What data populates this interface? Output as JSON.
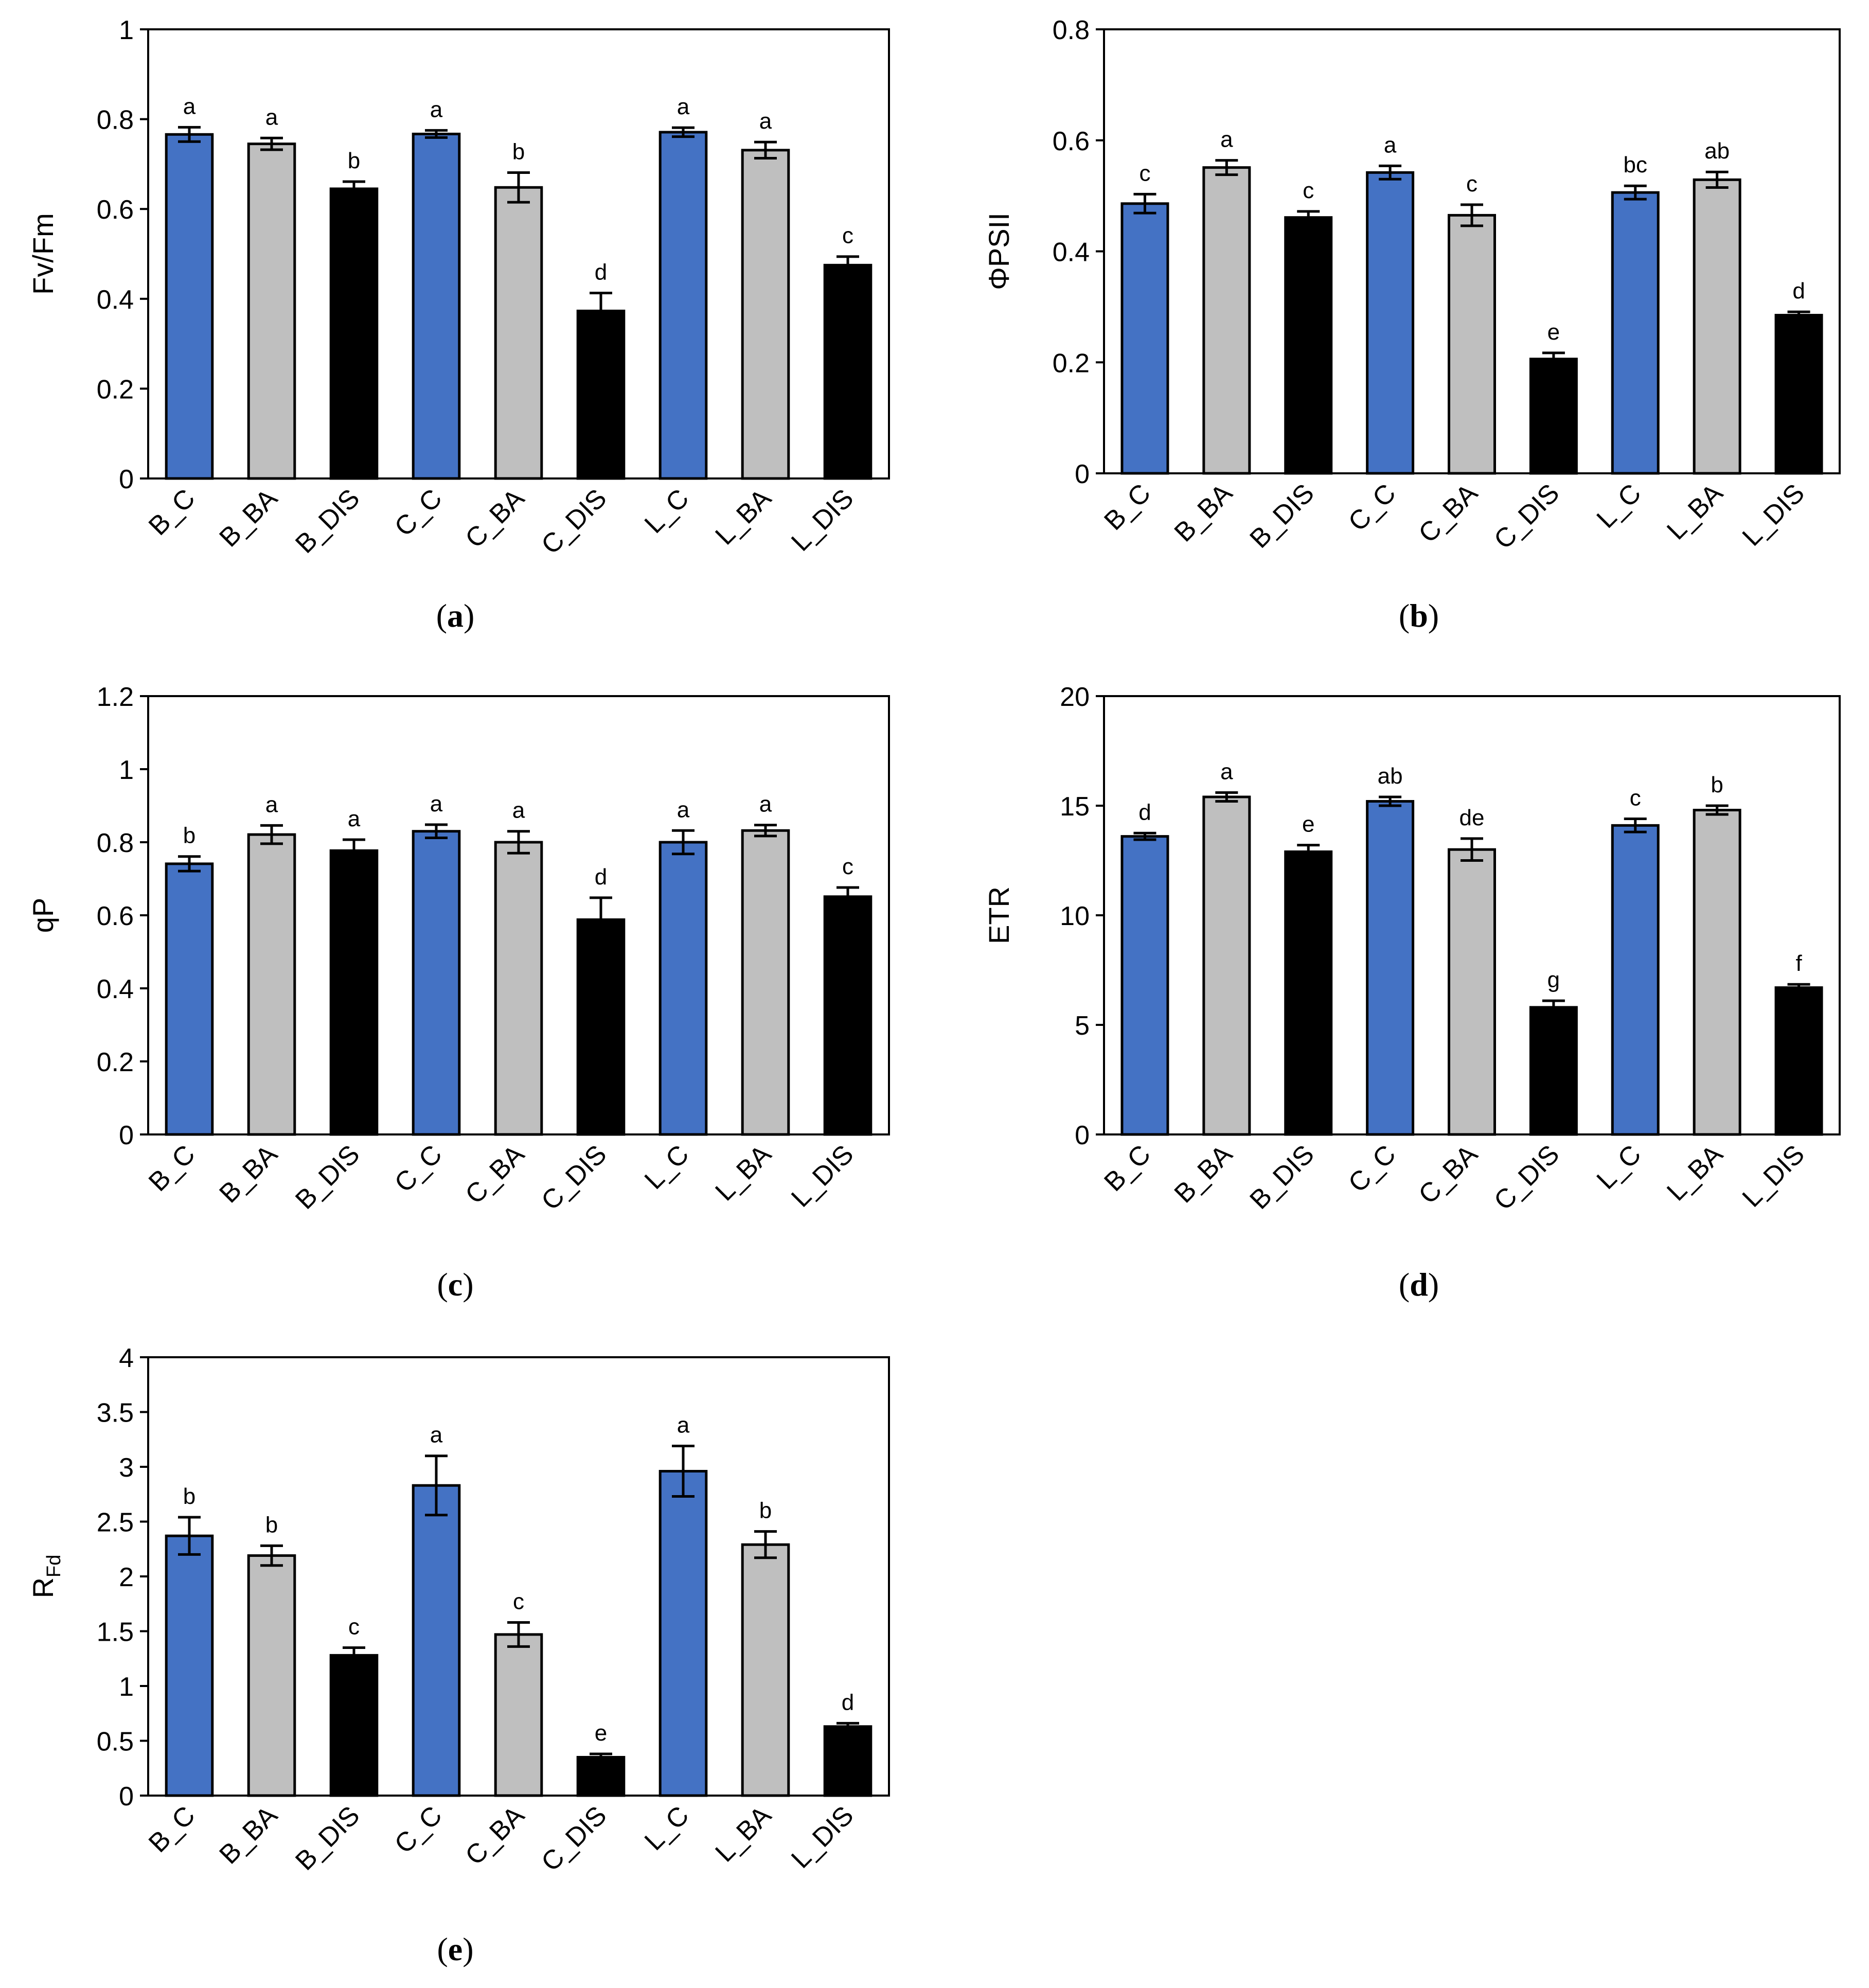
{
  "colors": {
    "blue": "#4472C4",
    "gray": "#BFBFBF",
    "black": "#000000",
    "axis": "#000000"
  },
  "chart_data": [
    {
      "id": "a",
      "type": "bar",
      "panel_label": "a",
      "ylabel": "Fv/Fm",
      "ylim": [
        0,
        1
      ],
      "yticks": [
        "0",
        "0.2",
        "0.4",
        "0.6",
        "0.8",
        "1"
      ],
      "ytick_values": [
        0,
        0.2,
        0.4,
        0.6,
        0.8,
        1
      ],
      "categories": [
        "B_C",
        "B_BA",
        "B_DIS",
        "C_C",
        "C_BA",
        "C_DIS",
        "L_C",
        "L_BA",
        "L_DIS"
      ],
      "fill": [
        "blue",
        "gray",
        "black",
        "blue",
        "gray",
        "black",
        "blue",
        "gray",
        "black"
      ],
      "values": [
        0.766,
        0.745,
        0.645,
        0.767,
        0.648,
        0.373,
        0.771,
        0.731,
        0.475
      ],
      "errors": [
        0.016,
        0.013,
        0.016,
        0.008,
        0.033,
        0.04,
        0.01,
        0.018,
        0.019
      ],
      "letters": [
        "a",
        "a",
        "b",
        "a",
        "b",
        "d",
        "a",
        "a",
        "c"
      ]
    },
    {
      "id": "b",
      "type": "bar",
      "panel_label": "b",
      "ylabel": "ΦPSII",
      "ylim": [
        0,
        0.8
      ],
      "yticks": [
        "0",
        "0.2",
        "0.4",
        "0.6",
        "0.8"
      ],
      "ytick_values": [
        0,
        0.2,
        0.4,
        0.6,
        0.8
      ],
      "categories": [
        "B_C",
        "B_BA",
        "B_DIS",
        "C_C",
        "C_BA",
        "C_DIS",
        "L_C",
        "L_BA",
        "L_DIS"
      ],
      "fill": [
        "blue",
        "gray",
        "black",
        "blue",
        "gray",
        "black",
        "blue",
        "gray",
        "black"
      ],
      "values": [
        0.486,
        0.551,
        0.461,
        0.542,
        0.465,
        0.206,
        0.506,
        0.529,
        0.285
      ],
      "errors": [
        0.017,
        0.013,
        0.011,
        0.012,
        0.019,
        0.011,
        0.012,
        0.014,
        0.006
      ],
      "letters": [
        "c",
        "a",
        "c",
        "a",
        "c",
        "e",
        "bc",
        "ab",
        "d"
      ]
    },
    {
      "id": "c",
      "type": "bar",
      "panel_label": "c",
      "ylabel": "qP",
      "ylim": [
        0,
        1.2
      ],
      "yticks": [
        "0",
        "0.2",
        "0.4",
        "0.6",
        "0.8",
        "1",
        "1.2"
      ],
      "ytick_values": [
        0,
        0.2,
        0.4,
        0.6,
        0.8,
        1,
        1.2
      ],
      "categories": [
        "B_C",
        "B_BA",
        "B_DIS",
        "C_C",
        "C_BA",
        "C_DIS",
        "L_C",
        "L_BA",
        "L_DIS"
      ],
      "fill": [
        "blue",
        "gray",
        "black",
        "blue",
        "gray",
        "black",
        "blue",
        "gray",
        "black"
      ],
      "values": [
        0.741,
        0.821,
        0.777,
        0.83,
        0.8,
        0.588,
        0.8,
        0.832,
        0.651
      ],
      "errors": [
        0.02,
        0.025,
        0.03,
        0.018,
        0.03,
        0.06,
        0.032,
        0.015,
        0.025
      ],
      "letters": [
        "b",
        "a",
        "a",
        "a",
        "a",
        "d",
        "a",
        "a",
        "c"
      ]
    },
    {
      "id": "d",
      "type": "bar",
      "panel_label": "d",
      "ylabel": "ETR",
      "ylim": [
        0,
        20
      ],
      "yticks": [
        "0",
        "5",
        "10",
        "15",
        "20"
      ],
      "ytick_values": [
        0,
        5,
        10,
        15,
        20
      ],
      "categories": [
        "B_C",
        "B_BA",
        "B_DIS",
        "C_C",
        "C_BA",
        "C_DIS",
        "L_C",
        "L_BA",
        "L_DIS"
      ],
      "fill": [
        "blue",
        "gray",
        "black",
        "blue",
        "gray",
        "black",
        "blue",
        "gray",
        "black"
      ],
      "values": [
        13.6,
        15.4,
        12.9,
        15.2,
        13.0,
        5.8,
        14.1,
        14.8,
        6.7
      ],
      "errors": [
        0.15,
        0.2,
        0.3,
        0.2,
        0.5,
        0.3,
        0.3,
        0.2,
        0.15
      ],
      "letters": [
        "d",
        "a",
        "e",
        "ab",
        "de",
        "g",
        "c",
        "b",
        "f"
      ]
    },
    {
      "id": "e",
      "type": "bar",
      "panel_label": "e",
      "ylabel": "R",
      "ylabel_sub": "Fd",
      "ylim": [
        0,
        4
      ],
      "yticks": [
        "0",
        "0.5",
        "1",
        "1.5",
        "2",
        "2.5",
        "3",
        "3.5",
        "4"
      ],
      "ytick_values": [
        0,
        0.5,
        1,
        1.5,
        2,
        2.5,
        3,
        3.5,
        4
      ],
      "categories": [
        "B_C",
        "B_BA",
        "B_DIS",
        "C_C",
        "C_BA",
        "C_DIS",
        "L_C",
        "L_BA",
        "L_DIS"
      ],
      "fill": [
        "blue",
        "gray",
        "black",
        "blue",
        "gray",
        "black",
        "blue",
        "gray",
        "black"
      ],
      "values": [
        2.37,
        2.19,
        1.28,
        2.83,
        1.47,
        0.35,
        2.96,
        2.29,
        0.63
      ],
      "errors": [
        0.17,
        0.09,
        0.07,
        0.27,
        0.11,
        0.03,
        0.23,
        0.12,
        0.03
      ],
      "letters": [
        "b",
        "b",
        "c",
        "a",
        "c",
        "e",
        "a",
        "b",
        "d"
      ]
    }
  ]
}
